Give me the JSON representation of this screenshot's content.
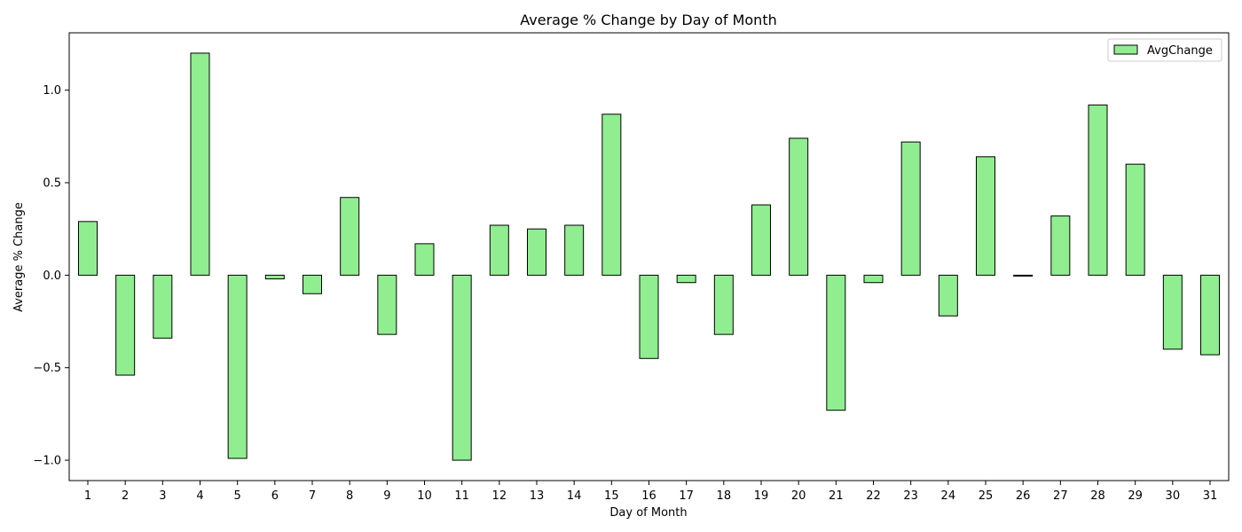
{
  "chart_data": {
    "type": "bar",
    "title": "Average % Change by Day of Month",
    "xlabel": "Day of Month",
    "ylabel": "Average % Change",
    "categories": [
      "1",
      "2",
      "3",
      "4",
      "5",
      "6",
      "7",
      "8",
      "9",
      "10",
      "11",
      "12",
      "13",
      "14",
      "15",
      "16",
      "17",
      "18",
      "19",
      "20",
      "21",
      "22",
      "23",
      "24",
      "25",
      "26",
      "27",
      "28",
      "29",
      "30",
      "31"
    ],
    "series": [
      {
        "name": "AvgChange",
        "color": "#90ee90",
        "edge_color": "#000000",
        "values": [
          0.29,
          -0.54,
          -0.34,
          1.2,
          -0.99,
          -0.02,
          -0.1,
          0.42,
          -0.32,
          0.17,
          -1.0,
          0.27,
          0.25,
          0.27,
          0.87,
          -0.45,
          -0.04,
          -0.32,
          0.38,
          0.74,
          -0.73,
          -0.04,
          0.72,
          -0.22,
          0.64,
          0.0,
          0.32,
          0.92,
          0.6,
          -0.4,
          -0.43
        ]
      }
    ],
    "ylim": [
      -1.11,
      1.31
    ],
    "yticks": [
      -1.0,
      -0.5,
      0.0,
      0.5,
      1.0
    ],
    "ytick_labels": [
      "−1.0",
      "−0.5",
      "0.0",
      "0.5",
      "1.0"
    ],
    "legend": {
      "placement": "upper right",
      "labels": [
        "AvgChange"
      ]
    },
    "grid": false
  }
}
